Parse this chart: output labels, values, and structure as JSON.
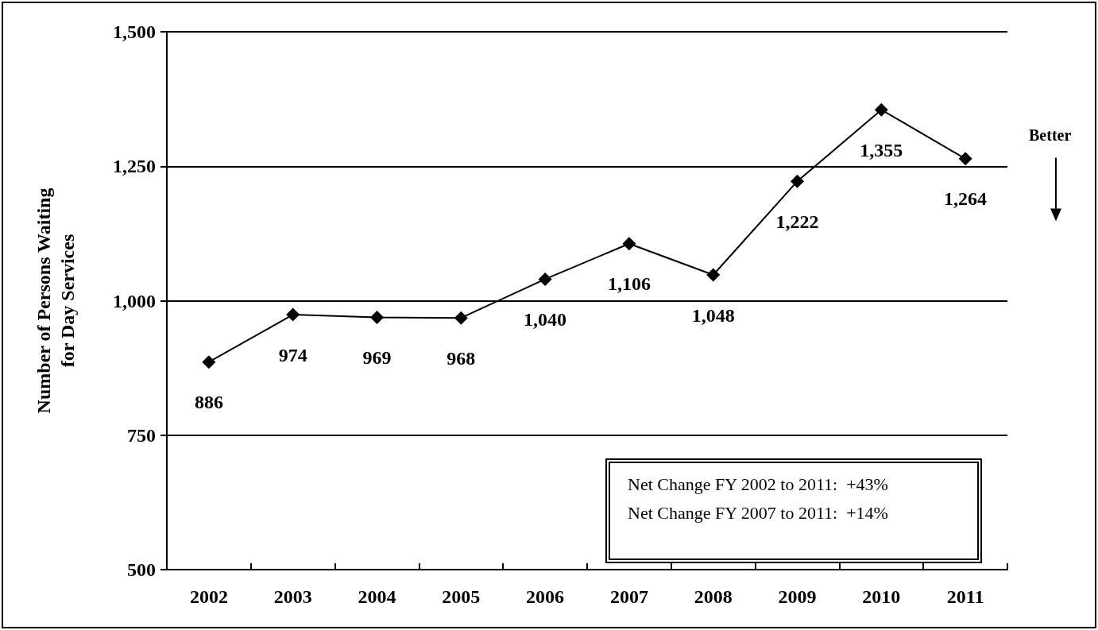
{
  "chart_data": {
    "type": "line",
    "ylabel": "Number of Persons Waiting\nfor Day Services",
    "categories": [
      "2002",
      "2003",
      "2004",
      "2005",
      "2006",
      "2007",
      "2008",
      "2009",
      "2010",
      "2011"
    ],
    "values": [
      886,
      974,
      969,
      968,
      1040,
      1106,
      1048,
      1222,
      1355,
      1264
    ],
    "color": "#000000",
    "value_labels": [
      "886",
      "974",
      "969",
      "968",
      "1,040",
      "1,106",
      "1,048",
      "1,222",
      "1,355",
      "1,264"
    ],
    "ylim": [
      500,
      1500
    ],
    "yticks": [
      500,
      750,
      {
        "value": 1000,
        "label": "1,000"
      },
      {
        "value": 1250,
        "label": "1,250"
      },
      {
        "value": 1500,
        "label": "1,500"
      }
    ],
    "grid": "y",
    "marker": "diamond",
    "line_style": "solid",
    "annotations": [
      "Better",
      "Net Change FY 2002 to 2011:  +43%",
      "Net Change FY 2007 to 2011:  +14%"
    ]
  }
}
